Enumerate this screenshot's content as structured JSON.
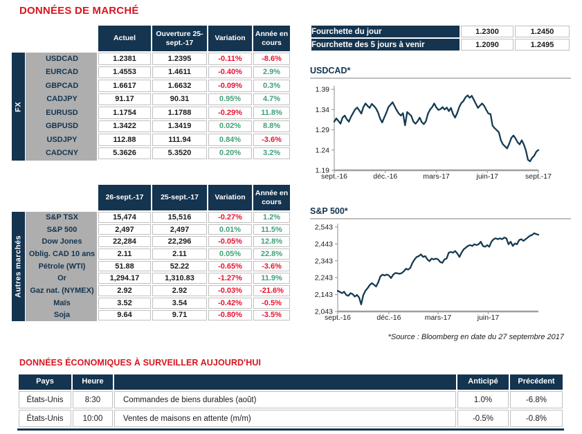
{
  "page": {
    "market_title": "DONNÉES DE MARCHÉ",
    "econ_title": "DONNÉES ÉCONOMIQUES À SURVEILLER AUJOURD'HUI",
    "source_note": "*Source : Bloomberg en date du 27 septembre 2017"
  },
  "colors": {
    "navy": "#14344F",
    "gray_label": "#AEAEAE",
    "negative_red": "#E8112D",
    "positive_green": "#3FA077",
    "title_red": "#D6161E",
    "line_navy": "#143A52",
    "cell_border": "#BFBFBF",
    "axis_gray": "#9E9E9E"
  },
  "fx_table": {
    "sidebar": "FX",
    "headers": [
      "Actuel",
      "Ouverture 25-sept.-17",
      "Variation",
      "Année en cours"
    ],
    "rows": [
      {
        "label": "USDCAD",
        "v1": "1.2381",
        "v2": "1.2395",
        "variation": "-0.11%",
        "ytd": "-8.6%"
      },
      {
        "label": "EURCAD",
        "v1": "1.4553",
        "v2": "1.4611",
        "variation": "-0.40%",
        "ytd": "2.9%"
      },
      {
        "label": "GBPCAD",
        "v1": "1.6617",
        "v2": "1.6632",
        "variation": "-0.09%",
        "ytd": "0.3%"
      },
      {
        "label": "CADJPY",
        "v1": "91.17",
        "v2": "90.31",
        "variation": "0.95%",
        "ytd": "4.7%"
      },
      {
        "label": "EURUSD",
        "v1": "1.1754",
        "v2": "1.1788",
        "variation": "-0.29%",
        "ytd": "11.8%"
      },
      {
        "label": "GBPUSD",
        "v1": "1.3422",
        "v2": "1.3419",
        "variation": "0.02%",
        "ytd": "8.8%"
      },
      {
        "label": "USDJPY",
        "v1": "112.88",
        "v2": "111.94",
        "variation": "0.84%",
        "ytd": "-3.6%"
      },
      {
        "label": "CADCNY",
        "v1": "5.3626",
        "v2": "5.3520",
        "variation": "0.20%",
        "ytd": "3.2%"
      }
    ]
  },
  "other_markets_table": {
    "sidebar": "Autres marchés",
    "headers": [
      "26-sept.-17",
      "25-sept.-17",
      "Variation",
      "Année en cours"
    ],
    "rows": [
      {
        "label": "S&P TSX",
        "v1": "15,474",
        "v2": "15,516",
        "variation": "-0.27%",
        "ytd": "1.2%"
      },
      {
        "label": "S&P 500",
        "v1": "2,497",
        "v2": "2,497",
        "variation": "0.01%",
        "ytd": "11.5%"
      },
      {
        "label": "Dow Jones",
        "v1": "22,284",
        "v2": "22,296",
        "variation": "-0.05%",
        "ytd": "12.8%"
      },
      {
        "label": "Oblig. CAD 10 ans",
        "v1": "2.11",
        "v2": "2.11",
        "variation": "0.05%",
        "ytd": "22.8%"
      },
      {
        "label": "Pétrole (WTI)",
        "v1": "51.88",
        "v2": "52.22",
        "variation": "-0.65%",
        "ytd": "-3.6%"
      },
      {
        "label": "Or",
        "v1": "1,294.17",
        "v2": "1,310.83",
        "variation": "-1.27%",
        "ytd": "11.9%"
      },
      {
        "label": "Gaz nat. (NYMEX)",
        "v1": "2.92",
        "v2": "2.92",
        "variation": "-0.03%",
        "ytd": "-21.6%"
      },
      {
        "label": "Maïs",
        "v1": "3.52",
        "v2": "3.54",
        "variation": "-0.42%",
        "ytd": "-0.5%"
      },
      {
        "label": "Soja",
        "v1": "9.64",
        "v2": "9.71",
        "variation": "-0.80%",
        "ytd": "-3.5%"
      }
    ]
  },
  "fourchette": {
    "rows": [
      {
        "label": "Fourchette du jour",
        "low": "1.2300",
        "high": "1.2450"
      },
      {
        "label": "Fourchette des 5 jours à venir",
        "low": "1.2090",
        "high": "1.2495"
      }
    ]
  },
  "econ_table": {
    "headers": [
      "Pays",
      "Heure",
      "",
      "Anticipé",
      "Précédent"
    ],
    "rows": [
      {
        "country": "États-Unis",
        "time": "8:30",
        "event": "Commandes de biens durables (août)",
        "expected": "1.0%",
        "previous": "-6.8%"
      },
      {
        "country": "États-Unis",
        "time": "10:00",
        "event": "Ventes de maisons en attente (m/m)",
        "expected": "-0.5%",
        "previous": "-0.8%"
      }
    ]
  },
  "chart_data": [
    {
      "type": "line",
      "title": "USDCAD*",
      "x_ticks": [
        "sept.-16",
        "déc.-16",
        "mars-17",
        "juin-17",
        "sept.-17"
      ],
      "y_ticks": [
        "1.39",
        "1.34",
        "1.29",
        "1.24",
        "1.19"
      ],
      "ylim": [
        1.19,
        1.39
      ],
      "legend": "none",
      "grid": false,
      "values": [
        1.31,
        1.318,
        1.312,
        1.305,
        1.32,
        1.325,
        1.316,
        1.31,
        1.322,
        1.331,
        1.34,
        1.345,
        1.338,
        1.33,
        1.346,
        1.355,
        1.349,
        1.344,
        1.354,
        1.349,
        1.343,
        1.333,
        1.318,
        1.308,
        1.32,
        1.332,
        1.346,
        1.352,
        1.358,
        1.348,
        1.338,
        1.33,
        1.325,
        1.331,
        1.301,
        1.334,
        1.329,
        1.324,
        1.31,
        1.305,
        1.311,
        1.32,
        1.309,
        1.304,
        1.311,
        1.33,
        1.34,
        1.346,
        1.355,
        1.345,
        1.339,
        1.341,
        1.346,
        1.34,
        1.345,
        1.336,
        1.344,
        1.329,
        1.32,
        1.331,
        1.346,
        1.356,
        1.361,
        1.37,
        1.375,
        1.369,
        1.374,
        1.364,
        1.354,
        1.344,
        1.35,
        1.355,
        1.349,
        1.339,
        1.33,
        1.329,
        1.3,
        1.294,
        1.289,
        1.284,
        1.264,
        1.254,
        1.249,
        1.244,
        1.256,
        1.27,
        1.276,
        1.269,
        1.259,
        1.254,
        1.264,
        1.254,
        1.239,
        1.216,
        1.212,
        1.221,
        1.226,
        1.236,
        1.24
      ]
    },
    {
      "type": "line",
      "title": "S&P 500*",
      "x_ticks": [
        "sept.-16",
        "déc.-16",
        "mars-17",
        "juin-17"
      ],
      "y_ticks": [
        "2,543",
        "2,443",
        "2,343",
        "2,243",
        "2,143",
        "2,043"
      ],
      "ylim": [
        2043,
        2543
      ],
      "legend": "none",
      "grid": false,
      "values": [
        2165,
        2159,
        2151,
        2160,
        2141,
        2136,
        2151,
        2146,
        2131,
        2141,
        2126,
        2085,
        2140,
        2166,
        2181,
        2200,
        2211,
        2201,
        2191,
        2216,
        2251,
        2261,
        2256,
        2262,
        2256,
        2241,
        2261,
        2271,
        2269,
        2266,
        2271,
        2281,
        2296,
        2291,
        2301,
        2331,
        2351,
        2366,
        2371,
        2381,
        2366,
        2371,
        2351,
        2341,
        2356,
        2351,
        2356,
        2351,
        2336,
        2331,
        2351,
        2356,
        2391,
        2396,
        2391,
        2401,
        2386,
        2366,
        2391,
        2411,
        2421,
        2431,
        2436,
        2431,
        2441,
        2436,
        2441,
        2456,
        2431,
        2426,
        2436,
        2426,
        2456,
        2471,
        2476,
        2471,
        2476,
        2471,
        2481,
        2476,
        2441,
        2456,
        2431,
        2446,
        2441,
        2466,
        2471,
        2461,
        2471,
        2481,
        2491,
        2496,
        2506,
        2501,
        2497
      ]
    }
  ]
}
